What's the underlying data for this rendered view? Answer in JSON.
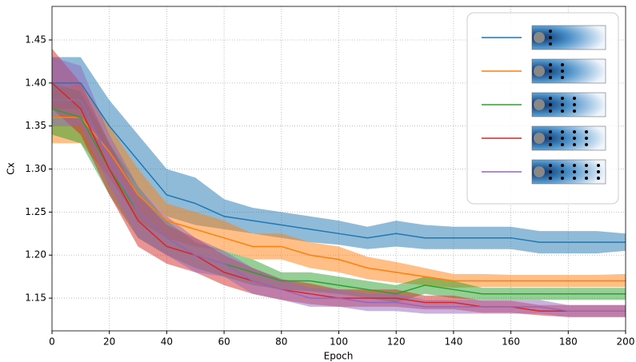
{
  "chart_data": {
    "type": "line",
    "x_label": "Epoch",
    "y_label": "Cx",
    "x": [
      0,
      10,
      20,
      30,
      40,
      50,
      60,
      70,
      80,
      90,
      100,
      110,
      120,
      130,
      140,
      150,
      160,
      170,
      180,
      190,
      200
    ],
    "series": [
      {
        "color": "#1f77b4",
        "values": [
          1.4,
          1.4,
          1.35,
          1.31,
          1.27,
          1.26,
          1.245,
          1.24,
          1.235,
          1.23,
          1.225,
          1.22,
          1.225,
          1.22,
          1.22,
          1.22,
          1.22,
          1.215,
          1.215,
          1.215,
          1.215
        ],
        "lower": [
          1.37,
          1.37,
          1.32,
          1.28,
          1.245,
          1.235,
          1.23,
          1.225,
          1.22,
          1.215,
          1.212,
          1.207,
          1.21,
          1.207,
          1.207,
          1.207,
          1.207,
          1.202,
          1.202,
          1.202,
          1.205
        ],
        "upper": [
          1.43,
          1.43,
          1.38,
          1.34,
          1.3,
          1.29,
          1.265,
          1.255,
          1.25,
          1.245,
          1.24,
          1.233,
          1.24,
          1.235,
          1.233,
          1.233,
          1.233,
          1.228,
          1.228,
          1.228,
          1.225
        ]
      },
      {
        "color": "#ff7f0e",
        "values": [
          1.36,
          1.36,
          1.32,
          1.27,
          1.24,
          1.23,
          1.22,
          1.21,
          1.21,
          1.2,
          1.195,
          1.185,
          1.18,
          1.175,
          1.17,
          1.17,
          1.17,
          1.17,
          1.17,
          1.17,
          1.17
        ],
        "lower": [
          1.33,
          1.33,
          1.29,
          1.24,
          1.22,
          1.21,
          1.205,
          1.195,
          1.195,
          1.185,
          1.18,
          1.172,
          1.168,
          1.165,
          1.162,
          1.163,
          1.163,
          1.163,
          1.163,
          1.163,
          1.163
        ],
        "upper": [
          1.39,
          1.4,
          1.35,
          1.3,
          1.26,
          1.25,
          1.24,
          1.225,
          1.225,
          1.215,
          1.21,
          1.198,
          1.192,
          1.185,
          1.178,
          1.178,
          1.177,
          1.177,
          1.177,
          1.177,
          1.178
        ]
      },
      {
        "color": "#2ca02c",
        "values": [
          1.37,
          1.36,
          1.3,
          1.25,
          1.22,
          1.2,
          1.19,
          1.18,
          1.17,
          1.17,
          1.165,
          1.16,
          1.155,
          1.165,
          1.16,
          1.155,
          1.155,
          1.155,
          1.155,
          1.155,
          1.155
        ],
        "lower": [
          1.34,
          1.33,
          1.27,
          1.22,
          1.2,
          1.185,
          1.175,
          1.165,
          1.16,
          1.158,
          1.155,
          1.15,
          1.145,
          1.155,
          1.15,
          1.148,
          1.148,
          1.148,
          1.148,
          1.148,
          1.148
        ],
        "upper": [
          1.4,
          1.39,
          1.33,
          1.28,
          1.24,
          1.215,
          1.205,
          1.195,
          1.18,
          1.18,
          1.175,
          1.17,
          1.165,
          1.175,
          1.17,
          1.162,
          1.162,
          1.162,
          1.162,
          1.162,
          1.162
        ]
      },
      {
        "color": "#d62728",
        "values": [
          1.4,
          1.37,
          1.3,
          1.24,
          1.21,
          1.2,
          1.18,
          1.17,
          1.16,
          1.155,
          1.15,
          1.15,
          1.15,
          1.145,
          1.145,
          1.14,
          1.14,
          1.135,
          1.135,
          1.135,
          1.135
        ],
        "lower": [
          1.37,
          1.34,
          1.27,
          1.21,
          1.19,
          1.18,
          1.165,
          1.155,
          1.148,
          1.143,
          1.14,
          1.14,
          1.14,
          1.137,
          1.137,
          1.133,
          1.133,
          1.13,
          1.128,
          1.128,
          1.128
        ],
        "upper": [
          1.44,
          1.4,
          1.33,
          1.27,
          1.235,
          1.22,
          1.2,
          1.185,
          1.172,
          1.167,
          1.16,
          1.16,
          1.16,
          1.153,
          1.153,
          1.147,
          1.147,
          1.142,
          1.142,
          1.142,
          1.142
        ]
      },
      {
        "color": "#9467bd",
        "values": [
          1.38,
          1.38,
          1.31,
          1.25,
          1.22,
          1.2,
          1.19,
          1.17,
          1.16,
          1.15,
          1.15,
          1.145,
          1.145,
          1.14,
          1.14,
          1.14,
          1.14,
          1.14,
          1.135,
          1.135,
          1.135
        ],
        "lower": [
          1.35,
          1.35,
          1.28,
          1.22,
          1.2,
          1.18,
          1.175,
          1.155,
          1.148,
          1.14,
          1.14,
          1.135,
          1.135,
          1.132,
          1.132,
          1.132,
          1.132,
          1.132,
          1.128,
          1.128,
          1.128
        ],
        "upper": [
          1.43,
          1.42,
          1.34,
          1.28,
          1.245,
          1.22,
          1.205,
          1.185,
          1.172,
          1.162,
          1.16,
          1.155,
          1.155,
          1.148,
          1.148,
          1.148,
          1.148,
          1.148,
          1.142,
          1.142,
          1.142
        ]
      }
    ],
    "band_opacity": 0.5,
    "xlim": [
      0,
      200
    ],
    "xticks": [
      0,
      20,
      40,
      60,
      80,
      100,
      120,
      140,
      160,
      180,
      200
    ],
    "ylim": [
      1.112,
      1.489
    ],
    "yticks": [
      1.15,
      {
        "value": 1.2,
        "label": "1.20"
      },
      1.25,
      {
        "value": 1.3,
        "label": "1.30"
      },
      1.35,
      {
        "value": 1.4,
        "label": "1.40"
      },
      1.45
    ],
    "grid": true,
    "legend": "upper right"
  }
}
